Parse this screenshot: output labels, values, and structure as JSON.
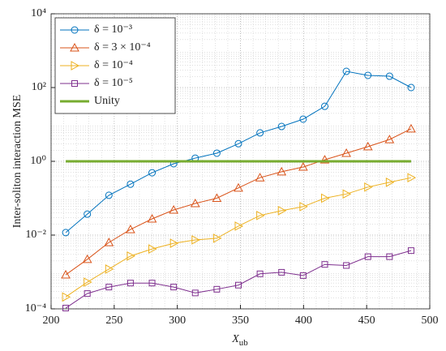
{
  "chart_data": {
    "type": "line",
    "xlabel": {
      "main": "X",
      "sub": "ub"
    },
    "ylabel": "Inter-soliton interaction MSE",
    "x": [
      211.6,
      228.7,
      245.8,
      262.9,
      280.0,
      297.1,
      314.2,
      331.3,
      348.4,
      365.5,
      382.6,
      399.7,
      416.8,
      433.9,
      451.0,
      468.1,
      485.2
    ],
    "xlim": [
      200,
      500
    ],
    "xticks": [
      200,
      250,
      300,
      350,
      400,
      450,
      500
    ],
    "ylim": [
      0.0001,
      10000
    ],
    "log_y": true,
    "yticks": [
      {
        "value": 0.0001,
        "label": "10⁻⁴"
      },
      {
        "value": 0.01,
        "label": "10⁻²"
      },
      {
        "value": 1,
        "label": "10⁰"
      },
      {
        "value": 100,
        "label": "10²"
      },
      {
        "value": 10000,
        "label": "10⁴"
      }
    ],
    "grid": true,
    "minor_grid": true,
    "legend": "upper left",
    "series": [
      {
        "name": "δ = 10⁻³",
        "color": "#0072BD",
        "marker": "circle",
        "values": [
          0.0117,
          0.037,
          0.12,
          0.24,
          0.49,
          0.86,
          1.22,
          1.66,
          3.0,
          5.9,
          8.8,
          13.9,
          31,
          275,
          214,
          203,
          100
        ]
      },
      {
        "name": "δ = 3 × 10⁻⁴",
        "color": "#D95319",
        "marker": "triangle-up",
        "values": [
          0.00084,
          0.0022,
          0.0063,
          0.0142,
          0.0275,
          0.048,
          0.072,
          0.1,
          0.19,
          0.36,
          0.52,
          0.7,
          1.1,
          1.66,
          2.5,
          3.9,
          7.6
        ]
      },
      {
        "name": "δ = 10⁻⁴",
        "color": "#EDB120",
        "marker": "triangle-right",
        "values": [
          0.00021,
          0.00053,
          0.0012,
          0.0027,
          0.0042,
          0.006,
          0.0074,
          0.0082,
          0.0175,
          0.034,
          0.046,
          0.059,
          0.1,
          0.13,
          0.2,
          0.27,
          0.36
        ]
      },
      {
        "name": "δ = 10⁻⁵",
        "color": "#7E2F8E",
        "marker": "square",
        "values": [
          0.000105,
          0.00026,
          0.00039,
          0.0005,
          0.0005,
          0.00039,
          0.00027,
          0.00034,
          0.00044,
          0.00089,
          0.00098,
          0.0008,
          0.0016,
          0.0015,
          0.0026,
          0.0026,
          0.0038
        ]
      },
      {
        "name": "Unity",
        "color": "#77AC30",
        "marker": "none",
        "x": [
          211.6,
          485.2
        ],
        "values": [
          1,
          1
        ]
      }
    ]
  }
}
